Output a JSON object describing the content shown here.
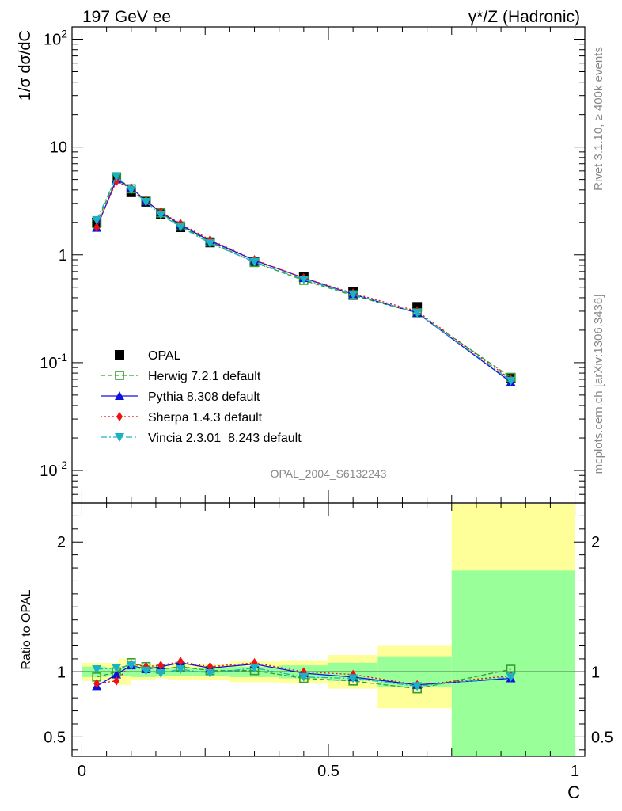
{
  "header": {
    "left_title": "197 GeV ee",
    "right_title": "γ*/Z (Hadronic)"
  },
  "side_labels": {
    "rivet": "Rivet 3.1.10, ≥ 400k events",
    "mcplots": "mcplots.cern.ch [arXiv:1306.3436]"
  },
  "chart_data": [
    {
      "type": "line",
      "title": "197 GeV ee",
      "annotation": "OPAL_2004_S6132243",
      "ylabel": "1/σ dσ/dC",
      "yscale": "log",
      "ylim": [
        0.005,
        130
      ],
      "xlim": [
        -0.02,
        1.02
      ],
      "ytick_labels": [
        "10^-2",
        "10^-1",
        "1",
        "10",
        "10^2"
      ],
      "legend_position": "center-left",
      "x": [
        0.03,
        0.07,
        0.1,
        0.13,
        0.16,
        0.2,
        0.26,
        0.35,
        0.45,
        0.55,
        0.68,
        0.87
      ],
      "series": [
        {
          "name": "OPAL",
          "color": "#000000",
          "values": [
            2.0,
            5.2,
            3.8,
            3.1,
            2.4,
            1.8,
            1.3,
            0.86,
            0.62,
            0.45,
            0.33,
            0.072
          ]
        },
        {
          "name": "Herwig 7.2.1 default",
          "color": "#33a02c",
          "values": [
            1.95,
            5.3,
            4.1,
            3.2,
            2.45,
            1.85,
            1.32,
            0.85,
            0.58,
            0.42,
            0.29,
            0.073
          ]
        },
        {
          "name": "Pythia 8.308 default",
          "color": "#1010dd",
          "values": [
            1.78,
            5.0,
            4.2,
            3.15,
            2.5,
            1.9,
            1.35,
            0.89,
            0.61,
            0.43,
            0.29,
            0.066
          ]
        },
        {
          "name": "Sherpa 1.4.3 default",
          "color": "#ee1111",
          "values": [
            1.8,
            4.8,
            4.15,
            3.2,
            2.5,
            1.95,
            1.38,
            0.9,
            0.61,
            0.44,
            0.3,
            0.07
          ]
        },
        {
          "name": "Vincia 2.3.01_8.243 default",
          "color": "#1ab3c6",
          "values": [
            2.1,
            5.35,
            4.0,
            3.1,
            2.35,
            1.82,
            1.28,
            0.86,
            0.59,
            0.43,
            0.29,
            0.068
          ]
        }
      ]
    },
    {
      "type": "line",
      "xlabel": "C",
      "ylabel": "Ratio to OPAL",
      "ylim": [
        0.35,
        2.3
      ],
      "xlim": [
        -0.02,
        1.02
      ],
      "xtick_labels": [
        "0",
        "0.5",
        "1"
      ],
      "ytick_labels": [
        "0.5",
        "1",
        "2"
      ],
      "bins": [
        0.0,
        0.05,
        0.075,
        0.1,
        0.15,
        0.175,
        0.225,
        0.3,
        0.4,
        0.5,
        0.6,
        0.75,
        1.0
      ],
      "band_stat_low": [
        0.96,
        0.97,
        0.97,
        0.96,
        0.97,
        0.97,
        0.97,
        0.96,
        0.95,
        0.93,
        0.88,
        0.35
      ],
      "band_stat_high": [
        1.04,
        1.03,
        1.03,
        1.04,
        1.03,
        1.03,
        1.03,
        1.04,
        1.05,
        1.07,
        1.12,
        1.78
      ],
      "band_total_low": [
        0.93,
        0.93,
        0.9,
        0.94,
        0.95,
        0.94,
        0.94,
        0.92,
        0.91,
        0.87,
        0.72,
        0.35
      ],
      "band_total_high": [
        1.07,
        1.07,
        1.1,
        1.06,
        1.05,
        1.06,
        1.06,
        1.08,
        1.09,
        1.13,
        1.2,
        2.35
      ],
      "x": [
        0.03,
        0.07,
        0.1,
        0.13,
        0.16,
        0.2,
        0.26,
        0.35,
        0.45,
        0.55,
        0.68,
        0.87
      ],
      "series": [
        {
          "name": "Herwig 7.2.1 default",
          "color": "#33a02c",
          "values": [
            0.96,
            1.0,
            1.07,
            1.04,
            1.02,
            1.04,
            1.01,
            1.01,
            0.95,
            0.93,
            0.87,
            1.02
          ]
        },
        {
          "name": "Pythia 8.308 default",
          "color": "#1010dd",
          "values": [
            0.89,
            0.98,
            1.05,
            1.02,
            1.04,
            1.07,
            1.03,
            1.06,
            0.99,
            0.96,
            0.9,
            0.95
          ]
        },
        {
          "name": "Sherpa 1.4.3 default",
          "color": "#ee1111",
          "values": [
            0.91,
            0.93,
            1.06,
            1.04,
            1.05,
            1.08,
            1.04,
            1.07,
            1.0,
            0.98,
            0.9,
            0.97
          ]
        },
        {
          "name": "Vincia 2.3.01_8.243 default",
          "color": "#1ab3c6",
          "values": [
            1.02,
            1.03,
            1.05,
            1.01,
            0.99,
            1.02,
            0.99,
            1.03,
            0.96,
            0.95,
            0.89,
            0.96
          ]
        }
      ]
    }
  ]
}
